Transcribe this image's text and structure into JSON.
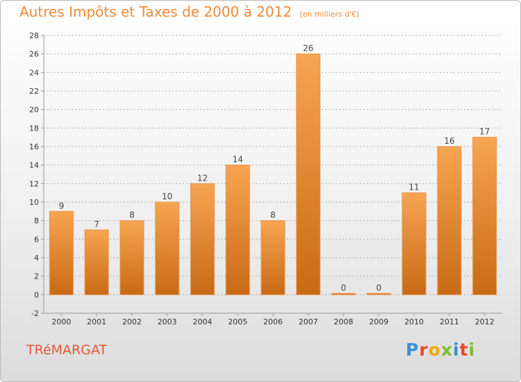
{
  "header": {
    "title": "Autres Impôts et Taxes de 2000 à 2012",
    "subtitle": "(en milliers d'€)"
  },
  "footer": {
    "place": "TRéMARGAT",
    "logo_letters": [
      "P",
      "r",
      "o",
      "x",
      "i",
      "t",
      "i"
    ],
    "logo_colors": [
      "#3a8fd6",
      "#e84a2a",
      "#f2a516",
      "#7bbf2e",
      "#3a8fd6",
      "#e84a2a",
      "#7bbf2e"
    ]
  },
  "colors": {
    "bar_light": "#f7a552",
    "bar_dark": "#c86a16",
    "axis": "#999999",
    "grid": "#aaaaaa",
    "tick_text": "#333333",
    "label_text": "#444444"
  },
  "chart_data": {
    "type": "bar",
    "categories": [
      "2000",
      "2001",
      "2002",
      "2003",
      "2004",
      "2005",
      "2006",
      "2007",
      "2008",
      "2009",
      "2010",
      "2011",
      "2012"
    ],
    "values": [
      9,
      7,
      8,
      10,
      12,
      14,
      8,
      26,
      0,
      0,
      11,
      16,
      17
    ],
    "data_labels": [
      "9",
      "7",
      "8",
      "10",
      "12",
      "14",
      "8",
      "26",
      "0",
      "0",
      "11",
      "16",
      "17"
    ],
    "yticks": [
      "-2",
      "0",
      "2",
      "4",
      "6",
      "8",
      "10",
      "12",
      "14",
      "16",
      "18",
      "20",
      "22",
      "24",
      "26",
      "28"
    ],
    "ylim": [
      -2,
      28
    ],
    "ystep": 2,
    "grid": true,
    "legend": "none"
  }
}
